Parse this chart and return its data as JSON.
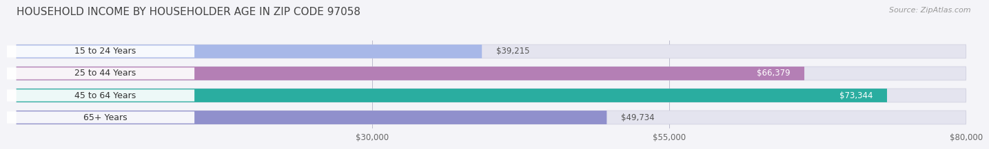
{
  "title": "HOUSEHOLD INCOME BY HOUSEHOLDER AGE IN ZIP CODE 97058",
  "source": "Source: ZipAtlas.com",
  "categories": [
    "15 to 24 Years",
    "25 to 44 Years",
    "45 to 64 Years",
    "65+ Years"
  ],
  "values": [
    39215,
    66379,
    73344,
    49734
  ],
  "labels": [
    "$39,215",
    "$66,379",
    "$73,344",
    "$49,734"
  ],
  "bar_colors": [
    "#a8b8e8",
    "#b47fb5",
    "#2aada0",
    "#9090cc"
  ],
  "bar_bg_color": "#e4e4ef",
  "xlim": [
    0,
    80000
  ],
  "xticks": [
    30000,
    55000,
    80000
  ],
  "xtick_labels": [
    "$30,000",
    "$55,000",
    "$80,000"
  ],
  "background_color": "#f4f4f8",
  "title_fontsize": 11,
  "source_fontsize": 8,
  "label_fontsize": 8.5,
  "category_fontsize": 9,
  "bar_height": 0.62,
  "bar_gap": 0.38
}
